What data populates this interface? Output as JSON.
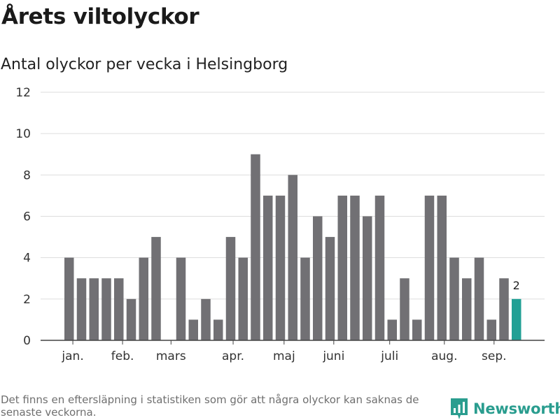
{
  "title": "Årets viltolyckor",
  "subtitle": "Antal olyckor per vecka i Helsingborg",
  "footnote": "Det finns en eftersläpning i statistiken som gör att några olyckor kan saknas de senaste veckorna.",
  "brand": {
    "name": "Newsworthy",
    "icon": "newsworthy-logo-icon",
    "color": "#2a9d8f"
  },
  "chart_data": {
    "type": "bar",
    "values": [
      4,
      3,
      3,
      3,
      3,
      2,
      4,
      5,
      0,
      4,
      1,
      2,
      1,
      5,
      4,
      9,
      7,
      7,
      8,
      4,
      6,
      5,
      7,
      7,
      6,
      7,
      1,
      3,
      1,
      7,
      7,
      4,
      3,
      4,
      1,
      3,
      2
    ],
    "month_labels": [
      {
        "label": "jan.",
        "index": 0.3
      },
      {
        "label": "feb.",
        "index": 4.3
      },
      {
        "label": "mars",
        "index": 8.2
      },
      {
        "label": "apr.",
        "index": 13.2
      },
      {
        "label": "maj",
        "index": 17.3
      },
      {
        "label": "juni",
        "index": 21.3
      },
      {
        "label": "juli",
        "index": 25.8
      },
      {
        "label": "aug.",
        "index": 30.2
      },
      {
        "label": "sep.",
        "index": 34.2
      }
    ],
    "y_ticks": [
      "0",
      "2",
      "4",
      "6",
      "8",
      "10",
      "12"
    ],
    "ylim": [
      0,
      12
    ],
    "grid": true,
    "highlight_index": 36,
    "highlight_label": "2",
    "colors": {
      "bar": "#717074",
      "highlight": "#22a095",
      "grid": "#dddddd",
      "axis": "#444444"
    }
  }
}
